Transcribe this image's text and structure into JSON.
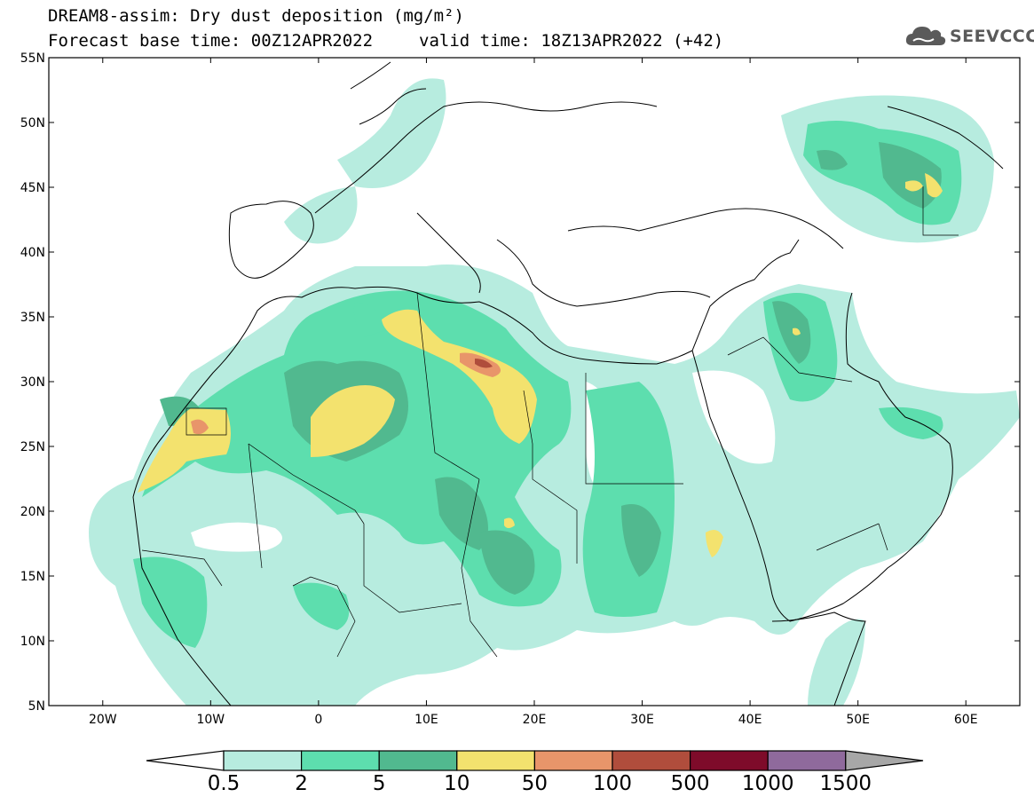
{
  "header": {
    "title_line1": "DREAM8-assim: Dry dust deposition (mg/m²)",
    "forecast_base": "Forecast base time: 00Z12APR2022",
    "valid_time": "valid time: 18Z13APR2022 (+42)"
  },
  "logo": {
    "text": "SEEVCCC",
    "icon": "cloud-icon"
  },
  "map": {
    "lon_range": [
      -25,
      65
    ],
    "lat_range": [
      5,
      55
    ],
    "lat_ticks": [
      "55N",
      "50N",
      "45N",
      "40N",
      "35N",
      "30N",
      "25N",
      "20N",
      "15N",
      "10N",
      "5N"
    ],
    "lon_ticks": [
      "20W",
      "10W",
      "0",
      "10E",
      "20E",
      "30E",
      "40E",
      "50E",
      "60E"
    ]
  },
  "colorbar": {
    "labels": [
      "0.5",
      "2",
      "5",
      "10",
      "50",
      "100",
      "500",
      "1000",
      "1500"
    ],
    "colors": [
      "#b7ecdf",
      "#5ddeae",
      "#51b98f",
      "#f3e26e",
      "#e8956a",
      "#b04d3c",
      "#7e0b2a",
      "#8f6a9c"
    ],
    "under_color": "#ffffff",
    "over_color": "#a7a7a7"
  }
}
